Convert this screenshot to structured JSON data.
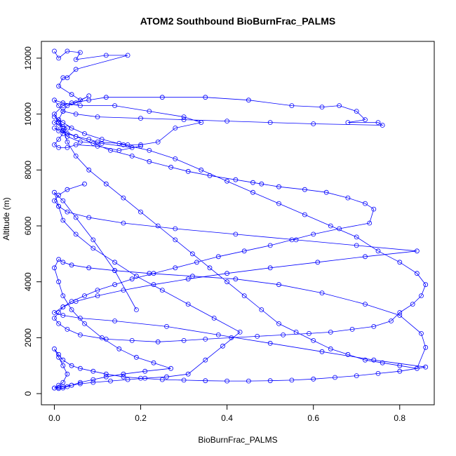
{
  "chart_data": {
    "type": "scatter",
    "title": "ATOM2 Southbound BioBurnFrac_PALMS",
    "xlabel": "BioBurnFrac_PALMS",
    "ylabel": "Altitude (m)",
    "xlim": [
      -0.03,
      0.88
    ],
    "ylim": [
      -400,
      12600
    ],
    "x_ticks": [
      0.0,
      0.2,
      0.4,
      0.6,
      0.8
    ],
    "x_tick_labels": [
      "0.0",
      "0.2",
      "0.4",
      "0.6",
      "0.8"
    ],
    "y_ticks": [
      0,
      2000,
      4000,
      6000,
      8000,
      10000,
      12000
    ],
    "y_tick_labels": [
      "0",
      "2000",
      "4000",
      "6000",
      "8000",
      "10000",
      "12000"
    ],
    "grid": false,
    "marker": "open-circle",
    "connect_points": true,
    "series": [
      {
        "color": "#0000ff",
        "x": [
          0.0,
          0.01,
          0.03,
          0.06,
          0.05,
          0.12,
          0.17,
          0.05,
          0.03,
          0.02,
          0.01,
          0.04,
          0.06,
          0.08,
          0.05,
          0.03,
          0.02,
          0.01,
          0.0,
          0.01,
          0.02,
          0.03,
          0.02,
          0.01,
          0.0,
          0.01,
          0.03,
          0.05,
          0.1,
          0.15,
          0.2,
          0.18,
          0.11,
          0.06,
          0.03,
          0.02,
          0.01,
          0.0,
          0.02,
          0.04,
          0.08,
          0.12,
          0.25,
          0.35,
          0.45,
          0.55,
          0.62,
          0.66,
          0.7,
          0.72,
          0.68,
          0.75,
          0.76,
          0.6,
          0.5,
          0.4,
          0.3,
          0.2,
          0.1,
          0.05,
          0.02,
          0.01,
          0.0,
          0.02,
          0.06,
          0.14,
          0.22,
          0.3,
          0.34,
          0.28,
          0.24,
          0.2,
          0.17,
          0.15,
          0.1,
          0.08,
          0.05,
          0.03,
          0.01,
          0.0,
          0.02,
          0.05,
          0.09,
          0.13,
          0.18,
          0.22,
          0.27,
          0.31,
          0.36,
          0.42,
          0.46,
          0.48,
          0.52,
          0.58,
          0.63,
          0.68,
          0.72,
          0.74,
          0.73,
          0.66,
          0.6,
          0.55,
          0.5,
          0.44,
          0.38,
          0.33,
          0.28,
          0.23,
          0.18,
          0.14,
          0.1,
          0.07,
          0.04,
          0.02,
          0.01,
          0.0,
          0.01,
          0.03,
          0.06,
          0.12,
          0.18,
          0.24,
          0.3,
          0.35,
          0.41,
          0.47,
          0.53,
          0.59,
          0.64,
          0.69,
          0.74,
          0.78,
          0.8,
          0.83,
          0.85,
          0.86,
          0.84,
          0.8,
          0.75,
          0.7,
          0.64,
          0.58,
          0.52,
          0.46,
          0.4,
          0.34,
          0.28,
          0.22,
          0.16,
          0.11,
          0.07,
          0.04,
          0.02,
          0.0,
          0.01,
          0.02,
          0.03,
          0.05,
          0.08,
          0.12,
          0.16,
          0.2,
          0.24,
          0.28,
          0.32,
          0.36,
          0.4,
          0.44,
          0.48,
          0.52,
          0.56,
          0.6,
          0.64,
          0.68,
          0.72,
          0.76,
          0.8,
          0.84,
          0.86,
          0.85,
          0.8,
          0.72,
          0.62,
          0.52,
          0.42,
          0.32,
          0.22,
          0.14,
          0.08,
          0.04,
          0.02,
          0.01,
          0.0,
          0.01,
          0.02,
          0.04,
          0.07,
          0.11,
          0.15,
          0.19,
          0.23,
          0.27,
          0.21,
          0.16,
          0.12,
          0.09,
          0.06,
          0.04,
          0.03,
          0.02,
          0.01,
          0.0,
          0.01,
          0.02,
          0.04,
          0.06,
          0.09,
          0.13,
          0.17,
          0.21,
          0.26,
          0.31,
          0.35,
          0.39,
          0.43,
          0.37,
          0.31,
          0.25,
          0.19,
          0.14,
          0.09,
          0.05,
          0.02,
          0.01,
          0.0,
          0.02,
          0.05,
          0.09,
          0.14,
          0.19
        ],
        "y": [
          12250,
          12000,
          12250,
          12200,
          11950,
          12100,
          12100,
          11600,
          11300,
          11300,
          11000,
          10700,
          10500,
          10650,
          10400,
          10300,
          10100,
          9800,
          9700,
          9600,
          9550,
          9500,
          9300,
          9100,
          8900,
          8800,
          8800,
          8900,
          8850,
          8700,
          8850,
          8800,
          8950,
          9000,
          9200,
          9400,
          9700,
          10000,
          10300,
          10400,
          10500,
          10600,
          10600,
          10600,
          10500,
          10300,
          10250,
          10300,
          10100,
          9800,
          9700,
          9700,
          9600,
          9650,
          9700,
          9750,
          9800,
          9850,
          9900,
          10000,
          10100,
          10300,
          10500,
          10400,
          10300,
          10300,
          10100,
          9900,
          9700,
          9500,
          9000,
          8900,
          8900,
          8950,
          9000,
          9100,
          9200,
          9300,
          9400,
          9500,
          9400,
          9200,
          8950,
          8700,
          8500,
          8300,
          8100,
          7950,
          7800,
          7650,
          7550,
          7500,
          7400,
          7300,
          7200,
          7000,
          6800,
          6600,
          6100,
          5900,
          5700,
          5500,
          5300,
          5100,
          4900,
          4700,
          4500,
          4300,
          4100,
          3900,
          3700,
          3500,
          3300,
          3100,
          2900,
          2700,
          2500,
          2300,
          2100,
          1950,
          1900,
          1850,
          1900,
          1950,
          2000,
          2050,
          2100,
          2150,
          2200,
          2300,
          2400,
          2600,
          2900,
          3200,
          3500,
          3900,
          4300,
          4700,
          5100,
          5600,
          6000,
          6400,
          6800,
          7200,
          7600,
          8000,
          8400,
          8700,
          8900,
          9100,
          9300,
          9500,
          9700,
          9900,
          9800,
          9500,
          9000,
          8500,
          8000,
          7500,
          7000,
          6500,
          6000,
          5500,
          5000,
          4500,
          4000,
          3500,
          3000,
          2500,
          2200,
          1900,
          1600,
          1400,
          1200,
          1100,
          1000,
          900,
          1650,
          2150,
          2800,
          3200,
          3600,
          3900,
          4100,
          4200,
          4300,
          4400,
          4500,
          4600,
          4700,
          4800,
          4500,
          4000,
          3500,
          3000,
          2500,
          2000,
          1600,
          1300,
          1100,
          900,
          800,
          700,
          600,
          500,
          400,
          300,
          250,
          200,
          180,
          200,
          220,
          250,
          300,
          350,
          400,
          450,
          500,
          550,
          600,
          700,
          1200,
          1700,
          2200,
          2700,
          3200,
          3700,
          4200,
          4700,
          5200,
          5700,
          6200,
          6700,
          7200,
          6900,
          6300,
          5500,
          4400,
          3000
        ]
      },
      {
        "color": "#0000ff",
        "x": [
          0.0,
          0.01,
          0.02,
          0.03,
          0.02,
          0.01,
          0.0,
          0.01,
          0.02,
          0.04,
          0.06,
          0.09,
          0.12,
          0.16,
          0.2,
          0.25,
          0.3,
          0.35,
          0.4,
          0.45,
          0.5,
          0.55,
          0.6,
          0.65,
          0.7,
          0.75,
          0.8,
          0.86,
          0.74,
          0.62,
          0.5,
          0.38,
          0.26,
          0.14,
          0.06,
          0.02,
          0.0,
          0.02,
          0.05,
          0.1,
          0.16,
          0.23,
          0.31,
          0.4,
          0.5,
          0.61,
          0.72,
          0.84,
          0.7,
          0.56,
          0.42,
          0.28,
          0.16,
          0.08,
          0.03,
          0.01,
          0.0,
          0.01,
          0.03,
          0.07
        ],
        "y": [
          200,
          300,
          400,
          700,
          1000,
          1300,
          1600,
          1400,
          1200,
          1000,
          900,
          800,
          700,
          600,
          550,
          500,
          480,
          460,
          450,
          450,
          460,
          480,
          520,
          580,
          640,
          720,
          800,
          950,
          1200,
          1500,
          1800,
          2100,
          2400,
          2600,
          2700,
          2800,
          2900,
          3100,
          3300,
          3500,
          3700,
          3900,
          4100,
          4300,
          4500,
          4700,
          4900,
          5100,
          5300,
          5500,
          5700,
          5900,
          6100,
          6300,
          6500,
          6700,
          6900,
          7100,
          7300,
          7500
        ]
      }
    ]
  }
}
